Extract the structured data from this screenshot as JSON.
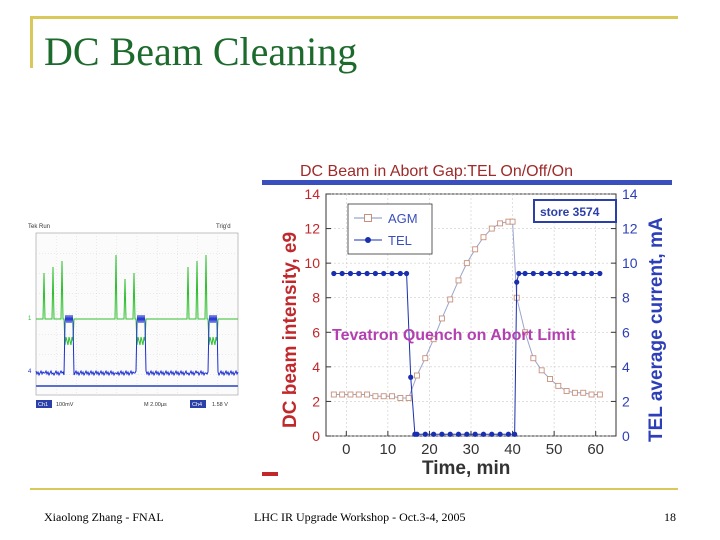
{
  "slide": {
    "title": "DC Beam Cleaning",
    "footer_left": "Xiaolong Zhang - FNAL",
    "footer_center": "LHC IR Upgrade Workshop - Oct.3-4, 2005",
    "page_number": "18"
  },
  "scope": {
    "top_left_label": "Tek Run",
    "top_right_label": "Trig'd",
    "side_label_1": "1",
    "side_label_4": "4",
    "bottom_ch1": "Ch1",
    "bottom_ch1_scale": "100mV",
    "bottom_time": "M 2.00µs",
    "bottom_ch4": "Ch4",
    "bottom_level": "1.58 V",
    "colors": {
      "background": "#ffffff",
      "trace_green": "#2fbf2f",
      "trace_blue": "#1a2fd0",
      "grid": "#c8c8c8"
    }
  },
  "chart_data": {
    "type": "line",
    "title": "DC Beam in Abort Gap:TEL On/Off/On",
    "xlabel": "Time, min",
    "ylabel": "DC beam intensity, e9",
    "y2label": "TEL average current, mA",
    "xlim": [
      0,
      60
    ],
    "ylim": [
      0,
      14
    ],
    "y2lim": [
      0,
      14
    ],
    "xticks": [
      0,
      10,
      20,
      30,
      40,
      50,
      60
    ],
    "yticks": [
      0,
      2,
      4,
      6,
      8,
      10,
      12,
      14
    ],
    "grid": true,
    "legend": {
      "position": "top-left",
      "entries": [
        "AGM",
        "TEL"
      ]
    },
    "annotations": [
      "store 3574",
      "Tevatron Quench on Abort Limit"
    ],
    "series": [
      {
        "name": "AGM",
        "axis": "left",
        "marker": "open-square",
        "color": "#c8907a",
        "x": [
          -3,
          -1,
          1,
          3,
          5,
          7,
          9,
          11,
          13,
          15,
          17,
          19,
          21,
          23,
          25,
          27,
          29,
          31,
          33,
          35,
          37,
          39,
          40,
          41,
          43,
          45,
          47,
          49,
          51,
          53,
          55,
          57,
          59,
          61
        ],
        "y": [
          2.4,
          2.4,
          2.4,
          2.4,
          2.4,
          2.3,
          2.3,
          2.3,
          2.2,
          2.2,
          3.5,
          4.5,
          5.6,
          6.8,
          7.9,
          9.0,
          10.0,
          10.8,
          11.5,
          12.0,
          12.3,
          12.4,
          12.4,
          8.0,
          6.0,
          4.5,
          3.8,
          3.3,
          2.9,
          2.6,
          2.5,
          2.5,
          2.4,
          2.4
        ]
      },
      {
        "name": "TEL",
        "axis": "right",
        "marker": "filled-circle",
        "color": "#1a2fb0",
        "x": [
          -3,
          -1,
          1,
          3,
          5,
          7,
          9,
          11,
          13,
          14.5,
          15.5,
          16.5,
          17,
          19,
          21,
          23,
          25,
          27,
          29,
          31,
          33,
          35,
          37,
          39,
          40.5,
          41,
          41.5,
          43,
          45,
          47,
          49,
          51,
          53,
          55,
          57,
          59,
          61
        ],
        "y": [
          9.4,
          9.4,
          9.4,
          9.4,
          9.4,
          9.4,
          9.4,
          9.4,
          9.4,
          9.4,
          3.4,
          0.1,
          0.1,
          0.1,
          0.1,
          0.1,
          0.1,
          0.1,
          0.1,
          0.1,
          0.1,
          0.1,
          0.1,
          0.1,
          0.1,
          8.9,
          9.4,
          9.4,
          9.4,
          9.4,
          9.4,
          9.4,
          9.4,
          9.4,
          9.4,
          9.4,
          9.4
        ]
      }
    ],
    "colors": {
      "title": "#9e2a2a",
      "left_axis": "#c0282b",
      "right_axis": "#2c3fb8",
      "title_band": "#3a4fbe",
      "quench_text": "#b33fb0",
      "store_box": "#2b3fa8"
    }
  }
}
